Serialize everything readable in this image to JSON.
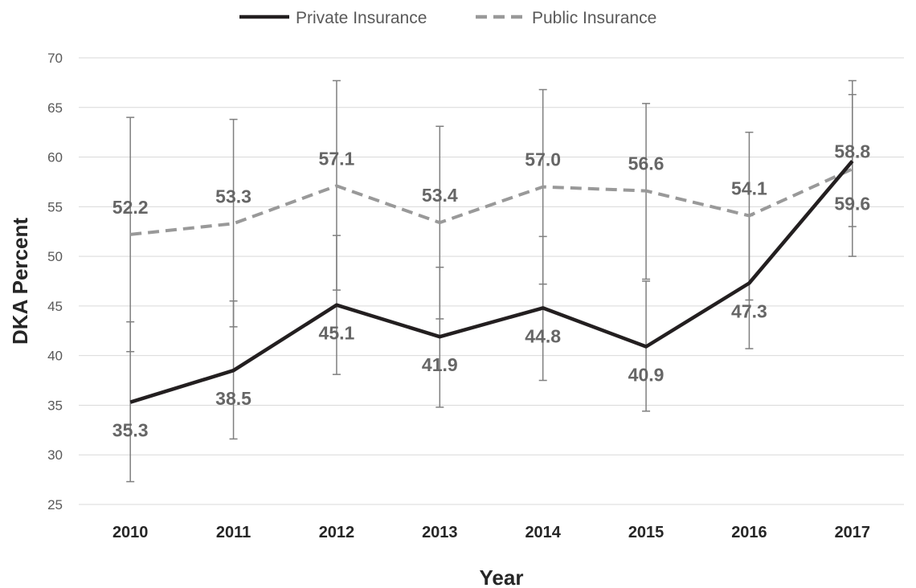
{
  "chart_data": {
    "type": "line",
    "categories": [
      "2010",
      "2011",
      "2012",
      "2013",
      "2014",
      "2015",
      "2016",
      "2017"
    ],
    "xlabel": "Year",
    "ylabel": "DKA Percent",
    "ylim": [
      25,
      70
    ],
    "yticks": [
      25,
      30,
      35,
      40,
      45,
      50,
      55,
      60,
      65,
      70
    ],
    "grid": "horizontal",
    "legend_position": "top",
    "series": [
      {
        "name": "Private Insurance",
        "color": "#231f20",
        "style": "solid",
        "values": [
          35.3,
          38.5,
          45.1,
          41.9,
          44.8,
          40.9,
          47.3,
          59.6
        ],
        "error_low": [
          27.3,
          31.6,
          38.1,
          34.8,
          37.5,
          34.4,
          40.7,
          50.0
        ],
        "error_high": [
          43.4,
          45.5,
          52.1,
          48.9,
          52.0,
          47.5,
          54.1,
          67.7
        ],
        "labels": [
          "35.3",
          "38.5",
          "45.1",
          "41.9",
          "44.8",
          "40.9",
          "47.3",
          "59.6"
        ]
      },
      {
        "name": "Public Insurance",
        "color": "#999999",
        "style": "dashed",
        "values": [
          52.2,
          53.3,
          57.1,
          53.4,
          57.0,
          56.6,
          54.1,
          58.8
        ],
        "error_low": [
          40.4,
          42.9,
          46.6,
          43.7,
          47.2,
          47.7,
          45.6,
          53.0
        ],
        "error_high": [
          64.0,
          63.8,
          67.7,
          63.1,
          66.8,
          65.4,
          62.5,
          66.3
        ],
        "labels": [
          "52.2",
          "53.3",
          "57.1",
          "53.4",
          "57.0",
          "56.6",
          "54.1",
          "58.8"
        ]
      }
    ]
  }
}
